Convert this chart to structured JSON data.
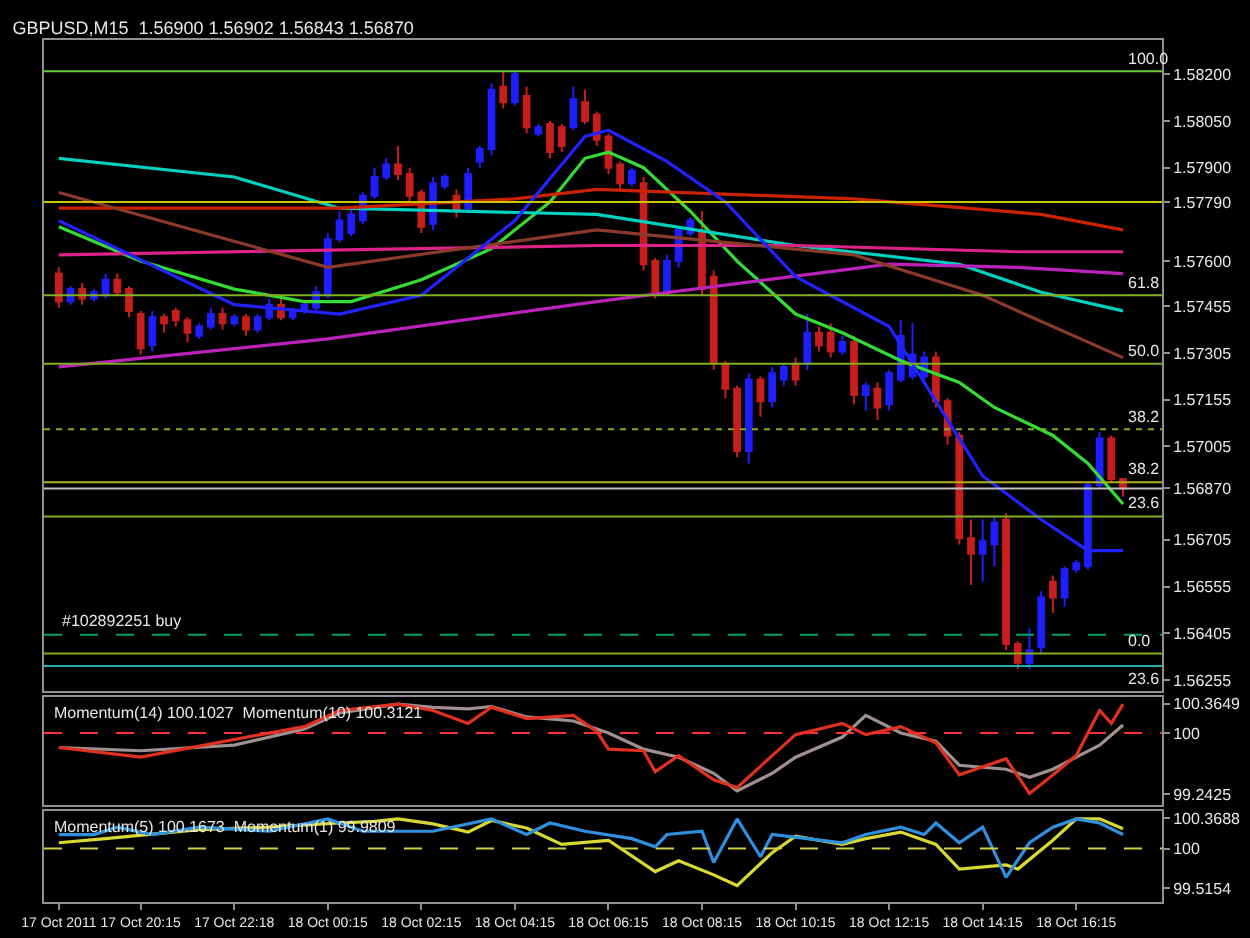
{
  "chart_data": [
    {
      "type": "candlestick",
      "title": "GBPUSD,M15  1.56900 1.56902 1.56843 1.56870",
      "x": [
        "2011-10-17T18:30",
        "2011-10-17T18:45",
        "2011-10-17T19:00",
        "2011-10-17T19:15",
        "2011-10-17T19:30",
        "2011-10-17T19:45",
        "2011-10-17T20:00",
        "2011-10-17T20:15",
        "2011-10-17T20:30",
        "2011-10-17T20:45",
        "2011-10-17T21:00",
        "2011-10-17T21:15",
        "2011-10-17T21:30",
        "2011-10-17T21:45",
        "2011-10-17T22:00",
        "2011-10-17T22:15",
        "2011-10-17T22:30",
        "2011-10-17T22:45",
        "2011-10-17T23:00",
        "2011-10-17T23:15",
        "2011-10-17T23:30",
        "2011-10-17T23:45",
        "2011-10-18T00:00",
        "2011-10-18T00:15",
        "2011-10-18T00:30",
        "2011-10-18T00:45",
        "2011-10-18T01:00",
        "2011-10-18T01:15",
        "2011-10-18T01:30",
        "2011-10-18T01:45",
        "2011-10-18T02:00",
        "2011-10-18T02:15",
        "2011-10-18T02:30",
        "2011-10-18T02:45",
        "2011-10-18T03:00",
        "2011-10-18T03:15",
        "2011-10-18T03:30",
        "2011-10-18T03:45",
        "2011-10-18T04:00",
        "2011-10-18T04:15",
        "2011-10-18T04:30",
        "2011-10-18T04:45",
        "2011-10-18T05:00",
        "2011-10-18T05:15",
        "2011-10-18T05:30",
        "2011-10-18T05:45",
        "2011-10-18T06:00",
        "2011-10-18T06:15",
        "2011-10-18T06:30",
        "2011-10-18T06:45",
        "2011-10-18T07:00",
        "2011-10-18T07:15",
        "2011-10-18T07:30",
        "2011-10-18T07:45",
        "2011-10-18T08:00",
        "2011-10-18T08:15",
        "2011-10-18T08:30",
        "2011-10-18T08:45",
        "2011-10-18T09:00",
        "2011-10-18T09:15",
        "2011-10-18T09:30",
        "2011-10-18T09:45",
        "2011-10-18T10:00",
        "2011-10-18T10:15",
        "2011-10-18T10:30",
        "2011-10-18T10:45",
        "2011-10-18T11:00",
        "2011-10-18T11:15",
        "2011-10-18T11:30",
        "2011-10-18T11:45",
        "2011-10-18T12:00",
        "2011-10-18T12:15",
        "2011-10-18T12:30",
        "2011-10-18T12:45",
        "2011-10-18T13:00",
        "2011-10-18T13:15",
        "2011-10-18T13:30",
        "2011-10-18T13:45",
        "2011-10-18T14:00",
        "2011-10-18T14:15",
        "2011-10-18T14:30",
        "2011-10-18T14:45",
        "2011-10-18T15:00",
        "2011-10-18T15:15",
        "2011-10-18T15:30",
        "2011-10-18T15:45",
        "2011-10-18T16:00",
        "2011-10-18T16:15",
        "2011-10-18T16:30",
        "2011-10-18T16:45",
        "2011-10-18T17:00",
        "2011-10-18T17:15"
      ],
      "ohlc": [
        [
          1.5756,
          1.5758,
          1.5745,
          1.5747
        ],
        [
          1.5747,
          1.5752,
          1.5746,
          1.5751
        ],
        [
          1.5751,
          1.5753,
          1.5746,
          1.5748
        ],
        [
          1.5748,
          1.5751,
          1.5747,
          1.575
        ],
        [
          1.5749,
          1.5756,
          1.5748,
          1.5754
        ],
        [
          1.5754,
          1.5756,
          1.5749,
          1.575
        ],
        [
          1.5751,
          1.5752,
          1.5742,
          1.5744
        ],
        [
          1.5743,
          1.5744,
          1.573,
          1.5732
        ],
        [
          1.5733,
          1.5744,
          1.5731,
          1.5742
        ],
        [
          1.5742,
          1.5743,
          1.5737,
          1.574
        ],
        [
          1.5744,
          1.5745,
          1.5739,
          1.5741
        ],
        [
          1.5741,
          1.5742,
          1.5734,
          1.5737
        ],
        [
          1.5736,
          1.574,
          1.5735,
          1.5739
        ],
        [
          1.5739,
          1.5745,
          1.5738,
          1.5743
        ],
        [
          1.5743,
          1.5745,
          1.5738,
          1.574
        ],
        [
          1.574,
          1.5743,
          1.5739,
          1.5742
        ],
        [
          1.5742,
          1.5743,
          1.5736,
          1.5738
        ],
        [
          1.5738,
          1.5743,
          1.5737,
          1.5742
        ],
        [
          1.5742,
          1.5748,
          1.5741,
          1.5746
        ],
        [
          1.5746,
          1.5748,
          1.5741,
          1.5742
        ],
        [
          1.5742,
          1.5745,
          1.5741,
          1.5744
        ],
        [
          1.5744,
          1.5747,
          1.5743,
          1.5746
        ],
        [
          1.5745,
          1.5752,
          1.5744,
          1.575
        ],
        [
          1.5749,
          1.5769,
          1.5748,
          1.5767
        ],
        [
          1.5767,
          1.5776,
          1.5766,
          1.5773
        ],
        [
          1.5769,
          1.5777,
          1.5768,
          1.5775
        ],
        [
          1.5773,
          1.5782,
          1.5772,
          1.5781
        ],
        [
          1.5781,
          1.579,
          1.578,
          1.5787
        ],
        [
          1.5787,
          1.5793,
          1.5786,
          1.5791
        ],
        [
          1.5791,
          1.5797,
          1.5786,
          1.5788
        ],
        [
          1.5788,
          1.579,
          1.5779,
          1.5781
        ],
        [
          1.5782,
          1.5783,
          1.5769,
          1.5771
        ],
        [
          1.5772,
          1.5787,
          1.577,
          1.5785
        ],
        [
          1.5784,
          1.5788,
          1.5783,
          1.5787
        ],
        [
          1.5781,
          1.5783,
          1.5774,
          1.5776
        ],
        [
          1.5777,
          1.579,
          1.5776,
          1.5788
        ],
        [
          1.5792,
          1.5797,
          1.579,
          1.5796
        ],
        [
          1.5796,
          1.5817,
          1.5794,
          1.5815
        ],
        [
          1.5816,
          1.5821,
          1.5809,
          1.5811
        ],
        [
          1.5811,
          1.5821,
          1.581,
          1.582
        ],
        [
          1.5813,
          1.5816,
          1.5801,
          1.5803
        ],
        [
          1.5801,
          1.5804,
          1.58,
          1.5803
        ],
        [
          1.5804,
          1.5805,
          1.5793,
          1.5795
        ],
        [
          1.5803,
          1.5804,
          1.5795,
          1.5797
        ],
        [
          1.5803,
          1.5816,
          1.5802,
          1.5812
        ],
        [
          1.5811,
          1.5815,
          1.5804,
          1.5805
        ],
        [
          1.5807,
          1.5808,
          1.5797,
          1.5799
        ],
        [
          1.58,
          1.5801,
          1.5788,
          1.579
        ],
        [
          1.5791,
          1.5792,
          1.5783,
          1.5785
        ],
        [
          1.5785,
          1.579,
          1.5784,
          1.5789
        ],
        [
          1.5785,
          1.5787,
          1.5757,
          1.5759
        ],
        [
          1.576,
          1.5761,
          1.5748,
          1.575
        ],
        [
          1.575,
          1.5762,
          1.5749,
          1.576
        ],
        [
          1.576,
          1.5771,
          1.5758,
          1.577
        ],
        [
          1.5769,
          1.5774,
          1.5768,
          1.5773
        ],
        [
          1.5769,
          1.5776,
          1.5749,
          1.5751
        ],
        [
          1.5755,
          1.5757,
          1.5725,
          1.5727
        ],
        [
          1.5727,
          1.5728,
          1.5716,
          1.5719
        ],
        [
          1.5719,
          1.572,
          1.5697,
          1.5699
        ],
        [
          1.5699,
          1.5724,
          1.5695,
          1.5722
        ],
        [
          1.5722,
          1.5723,
          1.571,
          1.5715
        ],
        [
          1.5715,
          1.5726,
          1.5713,
          1.5724
        ],
        [
          1.5722,
          1.5727,
          1.572,
          1.5726
        ],
        [
          1.5727,
          1.5729,
          1.572,
          1.5722
        ],
        [
          1.5727,
          1.5743,
          1.5725,
          1.5737
        ],
        [
          1.5737,
          1.5739,
          1.5731,
          1.5733
        ],
        [
          1.5737,
          1.574,
          1.5729,
          1.5731
        ],
        [
          1.5731,
          1.5736,
          1.573,
          1.5734
        ],
        [
          1.5734,
          1.5736,
          1.5714,
          1.5717
        ],
        [
          1.5717,
          1.5721,
          1.5712,
          1.572
        ],
        [
          1.5719,
          1.5721,
          1.5709,
          1.5713
        ],
        [
          1.5714,
          1.5725,
          1.5712,
          1.5724
        ],
        [
          1.5722,
          1.5741,
          1.5721,
          1.5736
        ],
        [
          1.5723,
          1.574,
          1.5722,
          1.573
        ],
        [
          1.5723,
          1.5731,
          1.5721,
          1.5729
        ],
        [
          1.5729,
          1.5731,
          1.5713,
          1.5715
        ],
        [
          1.5715,
          1.5716,
          1.5701,
          1.5704
        ],
        [
          1.5704,
          1.5705,
          1.5669,
          1.5671
        ],
        [
          1.5671,
          1.5677,
          1.5656,
          1.5666
        ],
        [
          1.5666,
          1.5677,
          1.5657,
          1.567
        ],
        [
          1.5669,
          1.5678,
          1.5662,
          1.5676
        ],
        [
          1.5677,
          1.5679,
          1.5635,
          1.5637
        ],
        [
          1.5637,
          1.5638,
          1.5629,
          1.5631
        ],
        [
          1.5631,
          1.5642,
          1.5629,
          1.5635
        ],
        [
          1.5636,
          1.5654,
          1.5634,
          1.5652
        ],
        [
          1.5657,
          1.5659,
          1.5647,
          1.5652
        ],
        [
          1.5652,
          1.5662,
          1.5649,
          1.5661
        ],
        [
          1.5661,
          1.5664,
          1.566,
          1.5663
        ],
        [
          1.5662,
          1.5689,
          1.5661,
          1.5688
        ],
        [
          1.5688,
          1.5705,
          1.5687,
          1.5703
        ],
        [
          1.5703,
          1.5704,
          1.5689,
          1.569
        ],
        [
          1.569,
          1.56902,
          1.56843,
          1.5687
        ]
      ],
      "series": [
        {
          "type": "line",
          "color": "#33dd33",
          "x": [
            "2011-10-17T18:30",
            "2011-10-17T20:15",
            "2011-10-17T22:15",
            "2011-10-17T23:45",
            "2011-10-18T00:45",
            "2011-10-18T02:15",
            "2011-10-18T03:45",
            "2011-10-18T05:00",
            "2011-10-18T05:45",
            "2011-10-18T06:15",
            "2011-10-18T07:00",
            "2011-10-18T08:00",
            "2011-10-18T09:00",
            "2011-10-18T10:15",
            "2011-10-18T11:15",
            "2011-10-18T12:30",
            "2011-10-18T13:45",
            "2011-10-18T14:30",
            "2011-10-18T15:45",
            "2011-10-18T16:30",
            "2011-10-18T17:15"
          ],
          "values": [
            1.5771,
            1.576,
            1.5751,
            1.5747,
            1.5747,
            1.5754,
            1.5764,
            1.5779,
            1.5793,
            1.5795,
            1.579,
            1.5776,
            1.576,
            1.5743,
            1.5737,
            1.5728,
            1.5721,
            1.5713,
            1.5704,
            1.5695,
            1.5682
          ]
        },
        {
          "type": "line",
          "color": "#00d0c0",
          "x": [
            "2011-10-17T18:30",
            "2011-10-17T22:15",
            "2011-10-18T00:30",
            "2011-10-18T06:00",
            "2011-10-18T10:15",
            "2011-10-18T13:45",
            "2011-10-18T15:30",
            "2011-10-18T17:15"
          ],
          "values": [
            1.5793,
            1.5787,
            1.5777,
            1.5775,
            1.5765,
            1.5759,
            1.575,
            1.5744
          ]
        },
        {
          "type": "line",
          "color": "#cc2200",
          "x": [
            "2011-10-17T18:30",
            "2011-10-18T00:30",
            "2011-10-18T04:15",
            "2011-10-18T06:00",
            "2011-10-18T11:30",
            "2011-10-18T15:30",
            "2011-10-18T17:15"
          ],
          "values": [
            1.5777,
            1.5777,
            1.578,
            1.5783,
            1.578,
            1.5775,
            1.577
          ]
        },
        {
          "type": "line",
          "color": "#dd2288",
          "x": [
            "2011-10-17T18:30",
            "2011-10-18T06:00",
            "2011-10-18T10:15",
            "2011-10-18T15:00",
            "2011-10-18T17:15"
          ],
          "values": [
            1.5762,
            1.5765,
            1.5765,
            1.5763,
            1.5763
          ]
        },
        {
          "type": "line",
          "color": "#bb22bb",
          "x": [
            "2011-10-17T18:30",
            "2011-10-18T00:15",
            "2011-10-18T06:00",
            "2011-10-18T12:15",
            "2011-10-18T15:00",
            "2011-10-18T17:15"
          ],
          "values": [
            1.5726,
            1.5735,
            1.5747,
            1.5759,
            1.5758,
            1.5756
          ]
        },
        {
          "type": "line",
          "color": "#8b3a2a",
          "x": [
            "2011-10-17T18:30",
            "2011-10-18T00:15",
            "2011-10-18T06:00",
            "2011-10-18T11:30",
            "2011-10-18T14:15",
            "2011-10-18T17:15"
          ],
          "values": [
            1.5782,
            1.5758,
            1.577,
            1.5762,
            1.5749,
            1.5729
          ]
        },
        {
          "type": "line",
          "color": "#2222ff",
          "x": [
            "2011-10-17T18:30",
            "2011-10-17T22:15",
            "2011-10-18T00:30",
            "2011-10-18T02:15",
            "2011-10-18T04:15",
            "2011-10-18T05:45",
            "2011-10-18T06:15",
            "2011-10-18T07:30",
            "2011-10-18T08:45",
            "2011-10-18T10:15",
            "2011-10-18T12:15",
            "2011-10-18T14:15",
            "2011-10-18T15:30",
            "2011-10-18T16:30",
            "2011-10-18T17:15"
          ],
          "values": [
            1.5773,
            1.5746,
            1.5743,
            1.5749,
            1.5773,
            1.58,
            1.5802,
            1.5792,
            1.5779,
            1.5755,
            1.5739,
            1.5691,
            1.5677,
            1.5667,
            1.5667
          ]
        }
      ],
      "xlim": [
        "2011-10-17T18:11",
        "2011-10-18T18:05"
      ],
      "ylim": [
        1.5622,
        1.5831
      ],
      "yticks": [
        {
          "value": 1.582,
          "label": "1.58200"
        },
        {
          "value": 1.5805,
          "label": "1.58050"
        },
        {
          "value": 1.579,
          "label": "1.57900"
        },
        {
          "value": 1.5779,
          "label": "1.57790"
        },
        {
          "value": 1.576,
          "label": "1.57600"
        },
        {
          "value": 1.57455,
          "label": "1.57455"
        },
        {
          "value": 1.57305,
          "label": "1.57305"
        },
        {
          "value": 1.57155,
          "label": "1.57155"
        },
        {
          "value": 1.57005,
          "label": "1.57005"
        },
        {
          "value": 1.5687,
          "label": "1.56870"
        },
        {
          "value": 1.56705,
          "label": "1.56705"
        },
        {
          "value": 1.56555,
          "label": "1.56555"
        },
        {
          "value": 1.56405,
          "label": "1.56405"
        },
        {
          "value": 1.56255,
          "label": "1.56255"
        }
      ],
      "ref_lines": [
        {
          "axis": "y",
          "value": 1.5821,
          "color": "#66cc33"
        },
        {
          "axis": "y",
          "value": 1.5779,
          "color": "#c8c800"
        },
        {
          "axis": "y",
          "value": 1.5749,
          "color": "#80b020"
        },
        {
          "axis": "y",
          "value": 1.5727,
          "color": "#80b020"
        },
        {
          "axis": "y",
          "value": 1.5706,
          "color": "#80b020",
          "line_style": "dotted"
        },
        {
          "axis": "y",
          "value": 1.5689,
          "color": "#b0b020"
        },
        {
          "axis": "y",
          "value": 1.5687,
          "color": "#c0c0c0"
        },
        {
          "axis": "y",
          "value": 1.5678,
          "color": "#80b020"
        },
        {
          "axis": "y",
          "value": 1.564,
          "color": "#00a070",
          "line_style": "dashed"
        },
        {
          "axis": "y",
          "value": 1.5634,
          "color": "#80b020"
        },
        {
          "axis": "y",
          "value": 1.563,
          "color": "#20b0b0"
        }
      ],
      "annotations": [
        {
          "text": "100.0",
          "x": "2011-10-18T17:15",
          "y": 1.5821
        },
        {
          "text": "61.8",
          "x": "2011-10-18T17:15",
          "y": 1.5749
        },
        {
          "text": "50.0",
          "x": "2011-10-18T17:15",
          "y": 1.5727
        },
        {
          "text": "38.2",
          "x": "2011-10-18T17:15",
          "y": 1.5706
        },
        {
          "text": "38.2",
          "x": "2011-10-18T17:15",
          "y": 1.5689
        },
        {
          "text": "23.6",
          "x": "2011-10-18T17:15",
          "y": 1.5678
        },
        {
          "text": "0.0",
          "x": "2011-10-18T17:15",
          "y": 1.5634
        },
        {
          "text": "23.6",
          "x": "2011-10-18T17:15",
          "y": 1.563
        },
        {
          "text": "#102892251 buy",
          "x": "2011-10-17T18:30",
          "y": 1.564
        }
      ],
      "tick_labels": "y",
      "marker": "none"
    },
    {
      "type": "line",
      "title": "Momentum(14) 100.1027  Momentum(10) 100.3121",
      "series": [
        {
          "color": "#a09090",
          "x": [
            "2011-10-17T18:30",
            "2011-10-17T20:15",
            "2011-10-17T22:15",
            "2011-10-17T23:45",
            "2011-10-18T00:30",
            "2011-10-18T01:45",
            "2011-10-18T02:30",
            "2011-10-18T03:15",
            "2011-10-18T03:45",
            "2011-10-18T04:30",
            "2011-10-18T05:30",
            "2011-10-18T06:15",
            "2011-10-18T07:00",
            "2011-10-18T07:45",
            "2011-10-18T08:30",
            "2011-10-18T09:00",
            "2011-10-18T09:45",
            "2011-10-18T10:15",
            "2011-10-18T11:15",
            "2011-10-18T11:45",
            "2011-10-18T12:30",
            "2011-10-18T13:15",
            "2011-10-18T13:45",
            "2011-10-18T14:45",
            "2011-10-18T15:15",
            "2011-10-18T15:45",
            "2011-10-18T16:15",
            "2011-10-18T16:45",
            "2011-10-18T17:15"
          ],
          "values": [
            99.82,
            99.78,
            99.85,
            100.05,
            100.25,
            100.36,
            100.32,
            100.3,
            100.33,
            100.2,
            100.15,
            100.0,
            99.8,
            99.7,
            99.5,
            99.28,
            99.5,
            99.7,
            99.95,
            100.22,
            100.0,
            99.9,
            99.6,
            99.55,
            99.45,
            99.55,
            99.7,
            99.85,
            100.1
          ]
        },
        {
          "color": "#e03020",
          "x": [
            "2011-10-17T18:30",
            "2011-10-17T20:15",
            "2011-10-17T22:15",
            "2011-10-17T23:45",
            "2011-10-18T00:30",
            "2011-10-18T01:45",
            "2011-10-18T02:30",
            "2011-10-18T03:15",
            "2011-10-18T03:45",
            "2011-10-18T04:30",
            "2011-10-18T05:30",
            "2011-10-18T06:00",
            "2011-10-18T06:15",
            "2011-10-18T07:00",
            "2011-10-18T07:15",
            "2011-10-18T07:45",
            "2011-10-18T08:30",
            "2011-10-18T09:00",
            "2011-10-18T09:45",
            "2011-10-18T10:15",
            "2011-10-18T11:15",
            "2011-10-18T11:45",
            "2011-10-18T12:30",
            "2011-10-18T13:15",
            "2011-10-18T13:45",
            "2011-10-18T14:45",
            "2011-10-18T15:15",
            "2011-10-18T15:45",
            "2011-10-18T16:15",
            "2011-10-18T16:45",
            "2011-10-18T17:00",
            "2011-10-18T17:15"
          ],
          "values": [
            99.82,
            99.7,
            99.92,
            100.08,
            100.28,
            100.36,
            100.28,
            100.12,
            100.32,
            100.18,
            100.22,
            100.02,
            99.8,
            99.78,
            99.52,
            99.72,
            99.42,
            99.32,
            99.72,
            99.98,
            100.12,
            99.98,
            100.08,
            99.88,
            99.48,
            99.68,
            99.25,
            99.48,
            99.72,
            100.28,
            100.12,
            100.36
          ]
        }
      ],
      "xlim": [
        "2011-10-17T18:11",
        "2011-10-18T18:05"
      ],
      "ylim": [
        99.1,
        100.45
      ],
      "yticks": [
        100.3649,
        100,
        99.2425
      ],
      "ref_lines": [
        {
          "axis": "y",
          "value": 100,
          "color": "#ff3030",
          "line_style": "dashed"
        }
      ],
      "tick_labels": "y",
      "marker": "none"
    },
    {
      "type": "line",
      "title": "Momentum(5) 100.1673  Momentum(1) 99.9809",
      "series": [
        {
          "color": "#d8d830",
          "x": [
            "2011-10-17T18:30",
            "2011-10-17T19:30",
            "2011-10-17T21:30",
            "2011-10-17T23:00",
            "2011-10-18T00:30",
            "2011-10-18T01:15",
            "2011-10-18T01:45",
            "2011-10-18T02:30",
            "2011-10-18T03:15",
            "2011-10-18T03:45",
            "2011-10-18T04:30",
            "2011-10-18T05:15",
            "2011-10-18T06:15",
            "2011-10-18T07:15",
            "2011-10-18T07:45",
            "2011-10-18T08:30",
            "2011-10-18T09:00",
            "2011-10-18T09:45",
            "2011-10-18T10:15",
            "2011-10-18T11:15",
            "2011-10-18T11:45",
            "2011-10-18T12:30",
            "2011-10-18T13:15",
            "2011-10-18T13:45",
            "2011-10-18T14:45",
            "2011-10-18T15:00",
            "2011-10-18T15:45",
            "2011-10-18T16:15",
            "2011-10-18T16:45",
            "2011-10-18T17:15"
          ],
          "values": [
            100.07,
            100.12,
            100.23,
            100.26,
            100.31,
            100.33,
            100.36,
            100.3,
            100.2,
            100.34,
            100.25,
            100.05,
            100.1,
            99.72,
            99.85,
            99.68,
            99.55,
            99.95,
            100.15,
            100.05,
            100.12,
            100.2,
            100.05,
            99.75,
            99.8,
            99.75,
            100.1,
            100.36,
            100.36,
            100.24
          ]
        },
        {
          "color": "#3090e0",
          "x": [
            "2011-10-17T18:30",
            "2011-10-17T19:15",
            "2011-10-17T19:45",
            "2011-10-17T20:30",
            "2011-10-17T21:30",
            "2011-10-17T23:00",
            "2011-10-18T00:15",
            "2011-10-18T01:00",
            "2011-10-18T01:45",
            "2011-10-18T02:30",
            "2011-10-18T03:45",
            "2011-10-18T04:30",
            "2011-10-18T05:00",
            "2011-10-18T05:45",
            "2011-10-18T06:45",
            "2011-10-18T07:15",
            "2011-10-18T07:30",
            "2011-10-18T08:15",
            "2011-10-18T08:30",
            "2011-10-18T09:00",
            "2011-10-18T09:30",
            "2011-10-18T09:45",
            "2011-10-18T10:30",
            "2011-10-18T11:15",
            "2011-10-18T11:45",
            "2011-10-18T12:30",
            "2011-10-18T13:00",
            "2011-10-18T13:15",
            "2011-10-18T13:45",
            "2011-10-18T14:15",
            "2011-10-18T14:45",
            "2011-10-18T15:15",
            "2011-10-18T15:45",
            "2011-10-18T16:15",
            "2011-10-18T16:45",
            "2011-10-18T17:15"
          ],
          "values": [
            100.17,
            100.17,
            100.26,
            100.17,
            100.26,
            100.21,
            100.36,
            100.21,
            100.21,
            100.21,
            100.36,
            100.17,
            100.31,
            100.21,
            100.12,
            100.02,
            100.17,
            100.21,
            99.83,
            100.36,
            99.9,
            100.17,
            100.12,
            100.07,
            100.17,
            100.26,
            100.17,
            100.31,
            100.07,
            100.26,
            99.65,
            100.07,
            100.26,
            100.36,
            100.31,
            100.17
          ]
        }
      ],
      "xlim": [
        "2011-10-17T18:11",
        "2011-10-18T18:05"
      ],
      "ylim": [
        99.35,
        100.45
      ],
      "yticks": [
        100.3688,
        100,
        99.5154
      ],
      "xticks": [
        {
          "value": "2011-10-17T18:30",
          "label": "17 Oct 2011"
        },
        {
          "value": "2011-10-17T20:15",
          "label": "17 Oct 20:15"
        },
        {
          "value": "2011-10-17T22:15",
          "label": "17 Oct 22:18"
        },
        {
          "value": "2011-10-18T00:15",
          "label": "18 Oct 00:15"
        },
        {
          "value": "2011-10-18T02:15",
          "label": "18 Oct 02:15"
        },
        {
          "value": "2011-10-18T04:15",
          "label": "18 Oct 04:15"
        },
        {
          "value": "2011-10-18T06:15",
          "label": "18 Oct 06:15"
        },
        {
          "value": "2011-10-18T08:15",
          "label": "18 Oct 08:15"
        },
        {
          "value": "2011-10-18T10:15",
          "label": "18 Oct 10:15"
        },
        {
          "value": "2011-10-18T12:15",
          "label": "18 Oct 12:15"
        },
        {
          "value": "2011-10-18T14:15",
          "label": "18 Oct 14:15"
        },
        {
          "value": "2011-10-18T16:15",
          "label": "18 Oct 16:15"
        }
      ],
      "ref_lines": [
        {
          "axis": "y",
          "value": 100,
          "color": "#d0d040",
          "line_style": "dashed"
        }
      ],
      "marker": "none"
    }
  ]
}
